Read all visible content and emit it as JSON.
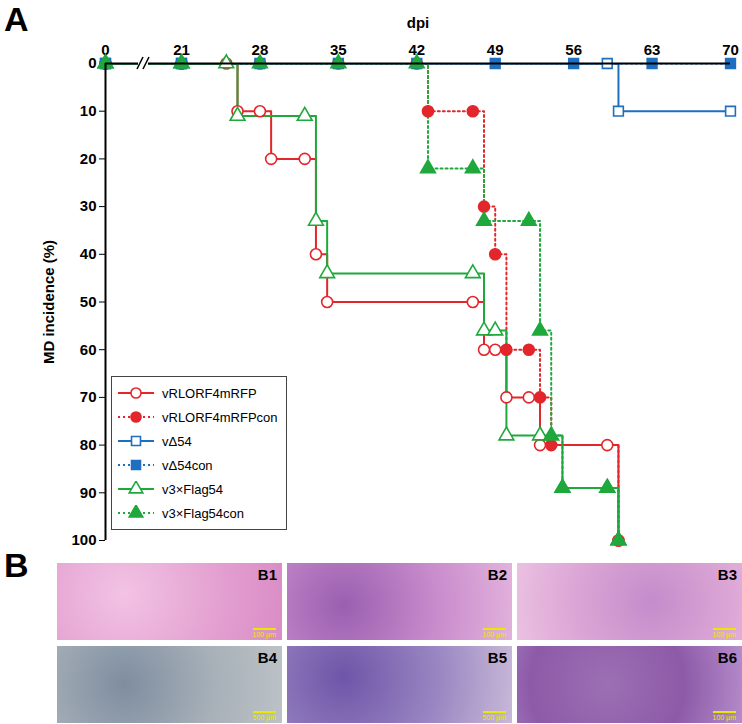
{
  "chart_data": {
    "type": "line",
    "panel_label": "A",
    "x_label": "dpi",
    "y_label": "MD incidence (%)",
    "xlim": [
      0,
      70
    ],
    "xticks": [
      0,
      21,
      28,
      35,
      42,
      49,
      56,
      63,
      70
    ],
    "ylim": [
      0,
      100
    ],
    "yticks": [
      0,
      10,
      20,
      30,
      40,
      50,
      60,
      70,
      80,
      90,
      100
    ],
    "legend": "lower left",
    "series": [
      {
        "name": "vRLORF4mRFP",
        "color": "#e3262b",
        "marker": "open-circle",
        "line_style": "solid",
        "x": [
          0,
          21,
          25,
          26,
          28,
          29,
          32,
          33,
          34,
          47,
          48,
          49,
          50,
          52,
          53,
          59,
          60
        ],
        "values": [
          0,
          0,
          0,
          10,
          10,
          20,
          20,
          40,
          50,
          50,
          60,
          60,
          70,
          70,
          80,
          80,
          100
        ]
      },
      {
        "name": "vRLORF4mRFPcon",
        "color": "#e3262b",
        "marker": "circle",
        "line_style": "dotted",
        "x": [
          0,
          21,
          28,
          35,
          42,
          43,
          47,
          48,
          49,
          50,
          52,
          53,
          54,
          60
        ],
        "values": [
          0,
          0,
          0,
          0,
          0,
          10,
          10,
          30,
          40,
          60,
          60,
          70,
          80,
          100
        ]
      },
      {
        "name": "vΔ54",
        "color": "#1f6fc1",
        "marker": "open-square",
        "line_style": "solid",
        "x": [
          0,
          21,
          59,
          60,
          70
        ],
        "values": [
          0,
          0,
          0,
          10,
          10
        ]
      },
      {
        "name": "vΔ54con",
        "color": "#1f6fc1",
        "marker": "square",
        "line_style": "dotted",
        "x": [
          0,
          21,
          28,
          35,
          42,
          49,
          56,
          63,
          70
        ],
        "values": [
          0,
          0,
          0,
          0,
          0,
          0,
          0,
          0,
          0
        ]
      },
      {
        "name": "v3×Flag54",
        "color": "#1fa83c",
        "marker": "open-triangle",
        "line_style": "solid",
        "x": [
          0,
          21,
          25,
          26,
          32,
          33,
          34,
          47,
          48,
          49,
          50,
          53,
          55,
          59,
          60
        ],
        "values": [
          0,
          0,
          0,
          11,
          11,
          33,
          44,
          44,
          56,
          56,
          78,
          78,
          89,
          89,
          100
        ]
      },
      {
        "name": "v3×Flag54con",
        "color": "#1fa83c",
        "marker": "triangle",
        "line_style": "dotted",
        "x": [
          0,
          21,
          28,
          35,
          42,
          43,
          47,
          48,
          52,
          53,
          54,
          55,
          59,
          60
        ],
        "values": [
          0,
          0,
          0,
          0,
          0,
          22,
          22,
          33,
          33,
          56,
          78,
          89,
          89,
          100
        ]
      }
    ]
  },
  "panel_B": {
    "label": "B",
    "images": [
      {
        "label": "B1",
        "scale_bar": "100 μm"
      },
      {
        "label": "B2",
        "scale_bar": "100 μm"
      },
      {
        "label": "B3",
        "scale_bar": "100 μm"
      },
      {
        "label": "B4",
        "scale_bar": "500 μm"
      },
      {
        "label": "B5",
        "scale_bar": "500 μm"
      },
      {
        "label": "B6",
        "scale_bar": "100 μm"
      }
    ]
  }
}
